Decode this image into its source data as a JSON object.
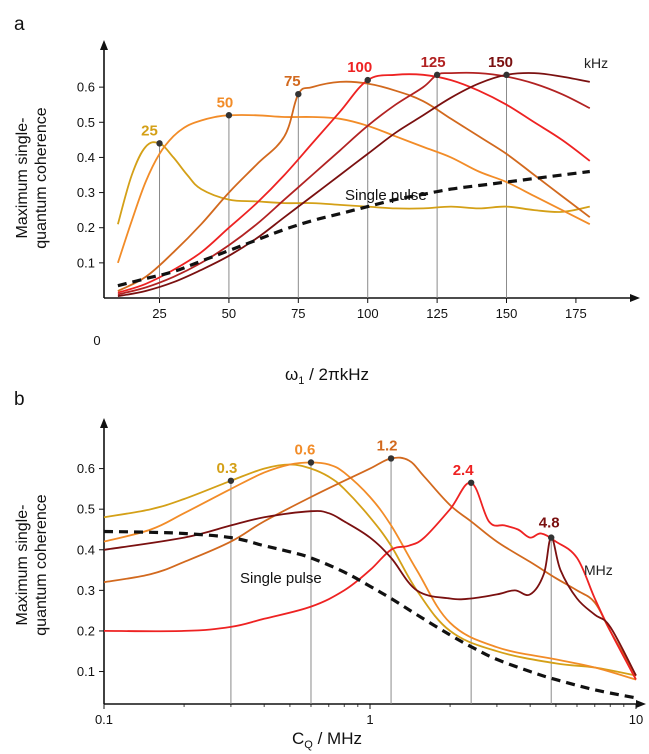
{
  "chart_data": [
    {
      "panel": "a",
      "type": "line",
      "xlabel_main": "ω",
      "xlabel_sub": "1",
      "xlabel_rest": " / 2πkHz",
      "ylabel_lines": [
        "Maximum single-",
        "quantum coherence"
      ],
      "xlim": [
        5,
        188
      ],
      "ylim": [
        0,
        0.7
      ],
      "xticks": [
        25,
        50,
        75,
        100,
        125,
        150,
        175
      ],
      "yticks": [
        0.1,
        0.2,
        0.3,
        0.4,
        0.5,
        0.6
      ],
      "origin_label": "0",
      "unit_label": "kHz",
      "annotation": "Single pulse",
      "series": [
        {
          "name": "25",
          "color": "#d4a017",
          "x": [
            10,
            15,
            20,
            25,
            30,
            35,
            40,
            50,
            60,
            70,
            80,
            90,
            100,
            110,
            120,
            130,
            140,
            150,
            160,
            170,
            180
          ],
          "y": [
            0.21,
            0.35,
            0.43,
            0.44,
            0.4,
            0.35,
            0.31,
            0.28,
            0.275,
            0.27,
            0.27,
            0.265,
            0.26,
            0.255,
            0.255,
            0.26,
            0.255,
            0.26,
            0.25,
            0.245,
            0.26
          ]
        },
        {
          "name": "50",
          "color": "#f28c28",
          "x": [
            10,
            15,
            20,
            25,
            30,
            35,
            40,
            45,
            50,
            60,
            70,
            80,
            90,
            100,
            110,
            120,
            130,
            140,
            150,
            160,
            170,
            180
          ],
          "y": [
            0.1,
            0.22,
            0.33,
            0.41,
            0.46,
            0.49,
            0.505,
            0.515,
            0.52,
            0.52,
            0.515,
            0.515,
            0.51,
            0.49,
            0.46,
            0.43,
            0.4,
            0.36,
            0.33,
            0.29,
            0.25,
            0.21
          ]
        },
        {
          "name": "75",
          "color": "#d2691e",
          "x": [
            10,
            20,
            30,
            40,
            50,
            60,
            70,
            75,
            80,
            90,
            100,
            110,
            120,
            130,
            140,
            150,
            160,
            170,
            180
          ],
          "y": [
            0.02,
            0.06,
            0.13,
            0.21,
            0.3,
            0.38,
            0.46,
            0.58,
            0.6,
            0.615,
            0.61,
            0.59,
            0.56,
            0.51,
            0.46,
            0.41,
            0.35,
            0.29,
            0.23
          ]
        },
        {
          "name": "100",
          "color": "#ee2222",
          "x": [
            10,
            20,
            30,
            40,
            50,
            60,
            70,
            80,
            90,
            100,
            110,
            120,
            130,
            140,
            150,
            160,
            170,
            180
          ],
          "y": [
            0.015,
            0.04,
            0.08,
            0.13,
            0.2,
            0.27,
            0.35,
            0.44,
            0.53,
            0.62,
            0.635,
            0.635,
            0.62,
            0.59,
            0.55,
            0.5,
            0.45,
            0.39
          ]
        },
        {
          "name": "125",
          "color": "#b22222",
          "x": [
            10,
            20,
            30,
            40,
            50,
            60,
            70,
            80,
            90,
            100,
            110,
            120,
            125,
            130,
            140,
            150,
            160,
            170,
            180
          ],
          "y": [
            0.01,
            0.03,
            0.06,
            0.1,
            0.15,
            0.21,
            0.28,
            0.35,
            0.42,
            0.49,
            0.55,
            0.6,
            0.635,
            0.64,
            0.64,
            0.63,
            0.61,
            0.58,
            0.54
          ]
        },
        {
          "name": "150",
          "color": "#7a1010",
          "x": [
            10,
            20,
            30,
            40,
            50,
            60,
            70,
            80,
            90,
            100,
            110,
            120,
            130,
            140,
            150,
            160,
            170,
            180
          ],
          "y": [
            0.005,
            0.02,
            0.045,
            0.08,
            0.12,
            0.17,
            0.23,
            0.29,
            0.35,
            0.41,
            0.47,
            0.52,
            0.57,
            0.61,
            0.635,
            0.64,
            0.63,
            0.615
          ]
        },
        {
          "name": "Single pulse",
          "color": "#111111",
          "dashed": true,
          "x": [
            10,
            20,
            30,
            40,
            50,
            60,
            70,
            80,
            90,
            100,
            110,
            120,
            130,
            140,
            150,
            160,
            170,
            180
          ],
          "y": [
            0.035,
            0.055,
            0.075,
            0.105,
            0.135,
            0.165,
            0.195,
            0.22,
            0.24,
            0.26,
            0.28,
            0.295,
            0.31,
            0.32,
            0.33,
            0.34,
            0.35,
            0.36
          ]
        }
      ],
      "markers": [
        {
          "label": "25",
          "color": "#d4a017",
          "x": 25,
          "y": 0.44
        },
        {
          "label": "50",
          "color": "#f28c28",
          "x": 50,
          "y": 0.52
        },
        {
          "label": "75",
          "color": "#d2691e",
          "x": 75,
          "y": 0.58
        },
        {
          "label": "100",
          "color": "#ee2222",
          "x": 100,
          "y": 0.62
        },
        {
          "label": "125",
          "color": "#b22222",
          "x": 125,
          "y": 0.635
        },
        {
          "label": "150",
          "color": "#7a1010",
          "x": 150,
          "y": 0.635
        }
      ]
    },
    {
      "panel": "b",
      "type": "line",
      "xscale": "log",
      "xlabel_main": "C",
      "xlabel_sub": "Q",
      "xlabel_rest": " / MHz",
      "ylabel_lines": [
        "Maximum single-",
        "quantum coherence"
      ],
      "xlim": [
        0.1,
        10
      ],
      "ylim": [
        0.02,
        0.7
      ],
      "xticks": [
        0.1,
        1,
        10
      ],
      "xtick_labels": [
        "0.1",
        "1",
        "10"
      ],
      "yticks": [
        0.1,
        0.2,
        0.3,
        0.4,
        0.5,
        0.6
      ],
      "unit_label": "MHz",
      "annotation": "Single pulse",
      "series": [
        {
          "name": "0.3",
          "color": "#d4a017",
          "x": [
            0.1,
            0.15,
            0.2,
            0.3,
            0.4,
            0.5,
            0.6,
            0.7,
            0.8,
            1.0,
            1.2,
            1.5,
            2.0,
            3.0,
            5.0,
            7.0,
            10.0
          ],
          "y": [
            0.48,
            0.5,
            0.525,
            0.57,
            0.6,
            0.61,
            0.6,
            0.58,
            0.55,
            0.48,
            0.41,
            0.3,
            0.2,
            0.15,
            0.12,
            0.11,
            0.09
          ]
        },
        {
          "name": "0.6",
          "color": "#f28c28",
          "x": [
            0.1,
            0.15,
            0.2,
            0.3,
            0.4,
            0.5,
            0.6,
            0.7,
            0.8,
            1.0,
            1.2,
            1.5,
            2.0,
            3.0,
            5.0,
            7.0,
            10.0
          ],
          "y": [
            0.42,
            0.45,
            0.49,
            0.55,
            0.59,
            0.61,
            0.615,
            0.61,
            0.59,
            0.53,
            0.46,
            0.35,
            0.22,
            0.16,
            0.13,
            0.11,
            0.08
          ]
        },
        {
          "name": "1.2",
          "color": "#d2691e",
          "x": [
            0.1,
            0.15,
            0.2,
            0.3,
            0.4,
            0.6,
            0.8,
            1.0,
            1.2,
            1.4,
            1.6,
            2.0,
            2.4,
            3.0,
            4.0,
            5.0,
            6.0,
            7.0,
            8.0,
            10.0
          ],
          "y": [
            0.32,
            0.34,
            0.37,
            0.42,
            0.47,
            0.53,
            0.57,
            0.6,
            0.625,
            0.62,
            0.58,
            0.51,
            0.47,
            0.42,
            0.37,
            0.33,
            0.3,
            0.27,
            0.2,
            0.09
          ]
        },
        {
          "name": "2.4",
          "color": "#ee2222",
          "x": [
            0.1,
            0.2,
            0.3,
            0.4,
            0.6,
            0.8,
            1.0,
            1.2,
            1.4,
            1.6,
            2.0,
            2.4,
            2.8,
            3.2,
            3.6,
            4.0,
            4.4,
            5.0,
            6.0,
            7.0,
            8.0,
            10.0
          ],
          "y": [
            0.2,
            0.2,
            0.21,
            0.23,
            0.26,
            0.3,
            0.35,
            0.4,
            0.41,
            0.43,
            0.5,
            0.565,
            0.47,
            0.46,
            0.45,
            0.43,
            0.44,
            0.42,
            0.38,
            0.28,
            0.2,
            0.08
          ]
        },
        {
          "name": "4.8",
          "color": "#7a1010",
          "x": [
            0.1,
            0.2,
            0.3,
            0.4,
            0.6,
            0.7,
            0.8,
            1.0,
            1.2,
            1.5,
            2.0,
            2.4,
            3.0,
            3.5,
            4.0,
            4.5,
            4.8,
            5.2,
            6.0,
            7.0,
            8.0,
            10.0
          ],
          "y": [
            0.4,
            0.43,
            0.46,
            0.48,
            0.495,
            0.49,
            0.47,
            0.43,
            0.38,
            0.3,
            0.28,
            0.28,
            0.29,
            0.3,
            0.29,
            0.34,
            0.43,
            0.35,
            0.28,
            0.24,
            0.21,
            0.09
          ]
        },
        {
          "name": "Single pulse",
          "color": "#111111",
          "dashed": true,
          "x": [
            0.1,
            0.15,
            0.2,
            0.3,
            0.4,
            0.5,
            0.6,
            0.8,
            1.0,
            1.2,
            1.5,
            2.0,
            2.5,
            3.0,
            4.0,
            5.0,
            7.0,
            10.0
          ],
          "y": [
            0.445,
            0.443,
            0.44,
            0.43,
            0.41,
            0.395,
            0.38,
            0.345,
            0.31,
            0.28,
            0.24,
            0.19,
            0.155,
            0.13,
            0.1,
            0.08,
            0.055,
            0.035
          ]
        }
      ],
      "markers": [
        {
          "label": "0.3",
          "color": "#d4a017",
          "x": 0.3,
          "y": 0.57
        },
        {
          "label": "0.6",
          "color": "#f28c28",
          "x": 0.6,
          "y": 0.615
        },
        {
          "label": "1.2",
          "color": "#d2691e",
          "x": 1.2,
          "y": 0.625
        },
        {
          "label": "2.4",
          "color": "#ee2222",
          "x": 2.4,
          "y": 0.565
        },
        {
          "label": "4.8",
          "color": "#7a1010",
          "x": 4.8,
          "y": 0.43
        }
      ]
    }
  ]
}
